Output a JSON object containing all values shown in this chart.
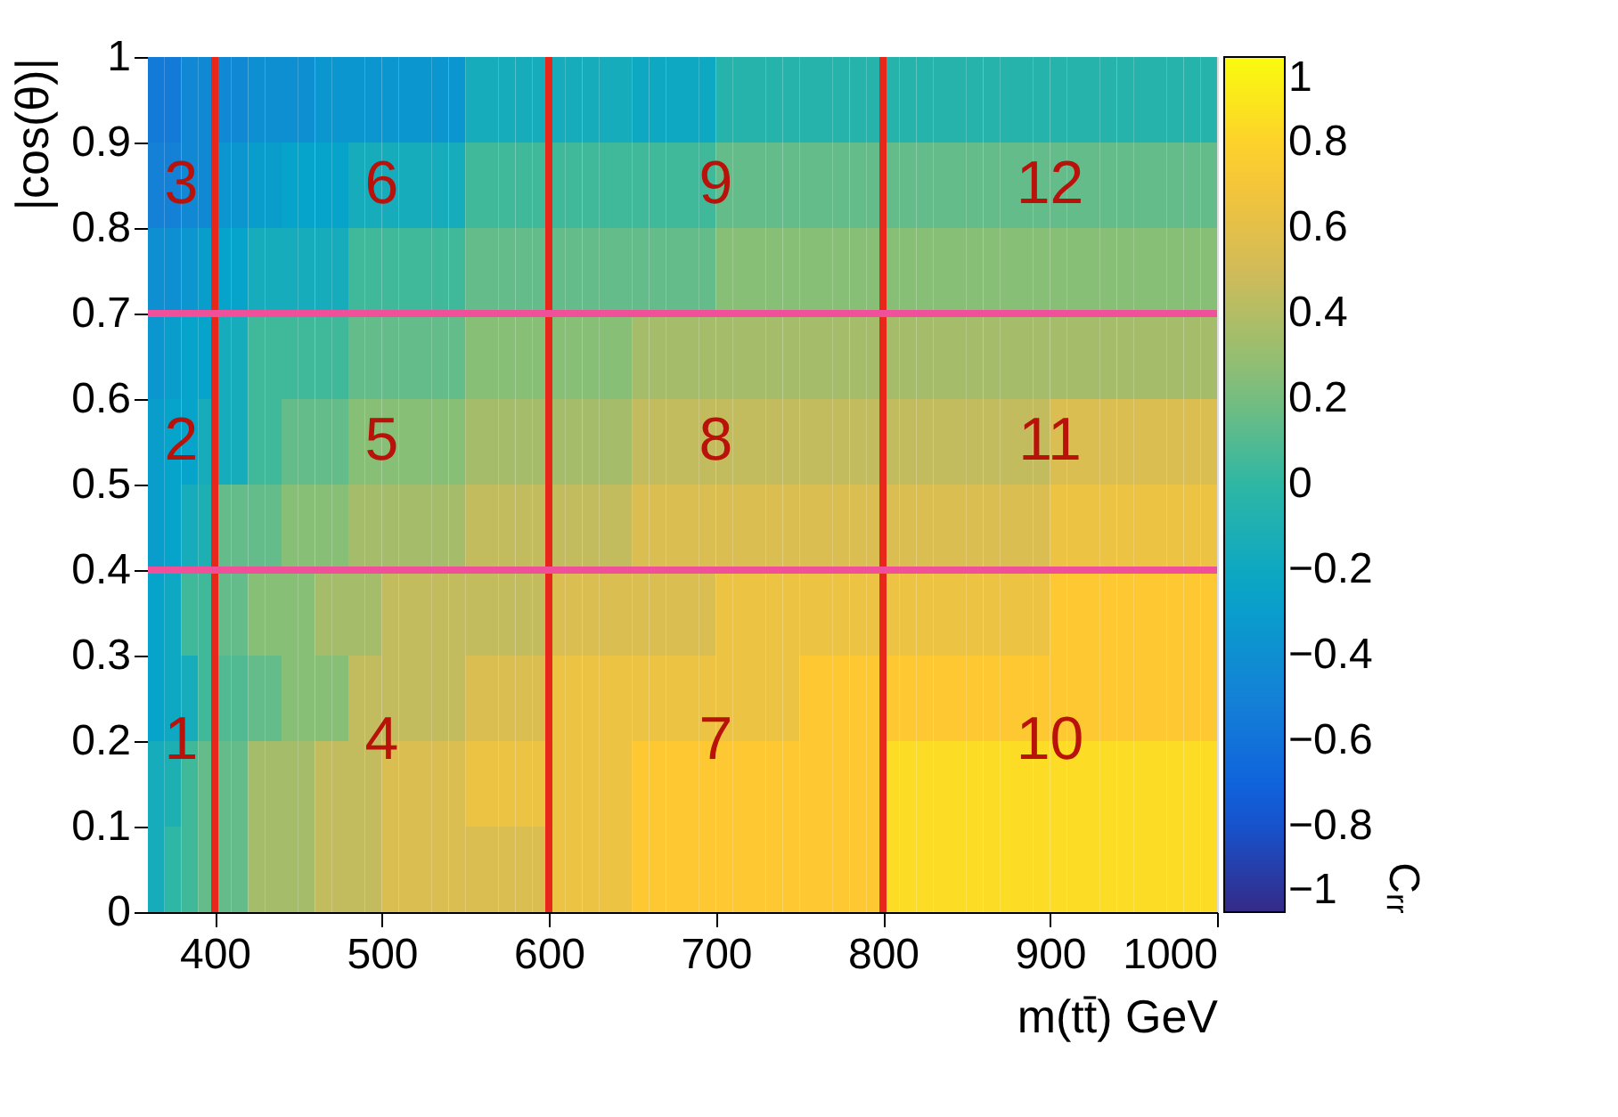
{
  "chart_data": {
    "type": "heatmap",
    "xlabel": "m(tt̄) GeV",
    "ylabel": "|cos(θ)|",
    "clabel": "Cᵣᵣ",
    "x": [
      365,
      375,
      385,
      395,
      405,
      415,
      425,
      435,
      445,
      455,
      465,
      475,
      485,
      495,
      505,
      515,
      525,
      535,
      545,
      555,
      565,
      575,
      585,
      595,
      605,
      615,
      625,
      635,
      645,
      655,
      665,
      675,
      685,
      695,
      705,
      715,
      725,
      735,
      745,
      755,
      765,
      775,
      785,
      795,
      805,
      815,
      825,
      835,
      845,
      855,
      865,
      875,
      885,
      895,
      905,
      915,
      925,
      935,
      945,
      955,
      965,
      975,
      985,
      995
    ],
    "y": [
      0.95,
      0.85,
      0.75,
      0.65,
      0.55,
      0.45,
      0.35,
      0.25,
      0.15,
      0.05
    ],
    "cells": [
      [
        -0.55,
        -0.55,
        -0.45,
        -0.45,
        -0.45,
        -0.45,
        -0.4,
        -0.4,
        -0.4,
        -0.4,
        -0.35,
        -0.35,
        -0.35,
        -0.35,
        -0.35,
        -0.35,
        -0.35,
        -0.35,
        -0.35,
        -0.15,
        -0.15,
        -0.15,
        -0.15,
        -0.15,
        -0.15,
        -0.15,
        -0.15,
        -0.15,
        -0.15,
        -0.2,
        -0.2,
        -0.2,
        -0.2,
        -0.2,
        -0.05,
        -0.05,
        -0.05,
        -0.05,
        -0.05,
        -0.05,
        -0.05,
        -0.05,
        -0.05,
        -0.05,
        -0.05,
        -0.05,
        -0.05,
        -0.05,
        -0.05,
        -0.05,
        -0.05,
        -0.05,
        -0.05,
        -0.05,
        -0.05,
        -0.05,
        -0.05,
        -0.05,
        -0.05,
        -0.05,
        -0.05,
        -0.05,
        -0.05,
        -0.05
      ],
      [
        -0.5,
        -0.5,
        -0.45,
        -0.45,
        -0.35,
        -0.35,
        -0.3,
        -0.3,
        -0.25,
        -0.25,
        -0.25,
        -0.25,
        -0.15,
        -0.15,
        -0.15,
        -0.15,
        -0.15,
        -0.15,
        -0.15,
        0.05,
        0.05,
        0.05,
        0.05,
        0.05,
        0.05,
        0.05,
        0.05,
        0.05,
        0.05,
        0.05,
        0.05,
        0.05,
        0.05,
        0.05,
        0.15,
        0.15,
        0.15,
        0.15,
        0.15,
        0.15,
        0.15,
        0.15,
        0.15,
        0.15,
        0.15,
        0.15,
        0.15,
        0.15,
        0.15,
        0.15,
        0.15,
        0.15,
        0.15,
        0.15,
        0.15,
        0.15,
        0.15,
        0.15,
        0.15,
        0.15,
        0.15,
        0.15,
        0.15,
        0.15
      ],
      [
        -0.4,
        -0.4,
        -0.35,
        -0.3,
        -0.25,
        -0.25,
        -0.15,
        -0.15,
        -0.15,
        -0.15,
        -0.15,
        -0.15,
        0.05,
        0.05,
        0.05,
        0.05,
        0.05,
        0.05,
        0.05,
        0.15,
        0.15,
        0.15,
        0.15,
        0.15,
        0.15,
        0.15,
        0.15,
        0.15,
        0.15,
        0.15,
        0.15,
        0.15,
        0.15,
        0.15,
        0.25,
        0.25,
        0.25,
        0.25,
        0.25,
        0.25,
        0.25,
        0.25,
        0.25,
        0.25,
        0.25,
        0.25,
        0.25,
        0.25,
        0.25,
        0.25,
        0.25,
        0.25,
        0.25,
        0.25,
        0.25,
        0.25,
        0.25,
        0.25,
        0.25,
        0.25,
        0.25,
        0.25,
        0.25,
        0.25
      ],
      [
        -0.35,
        -0.3,
        -0.25,
        -0.25,
        -0.15,
        -0.15,
        0.05,
        0.05,
        0.05,
        0.05,
        0.05,
        0.05,
        0.15,
        0.15,
        0.15,
        0.15,
        0.15,
        0.15,
        0.15,
        0.25,
        0.25,
        0.25,
        0.25,
        0.25,
        0.25,
        0.25,
        0.25,
        0.25,
        0.25,
        0.35,
        0.35,
        0.35,
        0.35,
        0.35,
        0.35,
        0.35,
        0.35,
        0.35,
        0.35,
        0.35,
        0.35,
        0.35,
        0.35,
        0.35,
        0.35,
        0.35,
        0.35,
        0.35,
        0.35,
        0.35,
        0.35,
        0.35,
        0.35,
        0.35,
        0.35,
        0.35,
        0.35,
        0.35,
        0.35,
        0.35,
        0.35,
        0.35,
        0.35,
        0.35
      ],
      [
        -0.3,
        -0.25,
        -0.25,
        -0.15,
        -0.15,
        -0.15,
        0.05,
        0.05,
        0.15,
        0.15,
        0.15,
        0.15,
        0.25,
        0.25,
        0.25,
        0.25,
        0.25,
        0.25,
        0.25,
        0.35,
        0.35,
        0.35,
        0.35,
        0.35,
        0.35,
        0.35,
        0.35,
        0.35,
        0.35,
        0.45,
        0.45,
        0.45,
        0.45,
        0.45,
        0.45,
        0.45,
        0.45,
        0.45,
        0.45,
        0.45,
        0.45,
        0.45,
        0.45,
        0.45,
        0.45,
        0.45,
        0.45,
        0.45,
        0.45,
        0.45,
        0.45,
        0.45,
        0.45,
        0.45,
        0.55,
        0.55,
        0.55,
        0.55,
        0.55,
        0.55,
        0.55,
        0.55,
        0.55,
        0.55
      ],
      [
        -0.3,
        -0.25,
        -0.15,
        -0.1,
        0.15,
        0.15,
        0.15,
        0.15,
        0.25,
        0.25,
        0.25,
        0.25,
        0.35,
        0.35,
        0.35,
        0.35,
        0.35,
        0.35,
        0.35,
        0.45,
        0.45,
        0.45,
        0.45,
        0.45,
        0.45,
        0.45,
        0.45,
        0.45,
        0.45,
        0.55,
        0.55,
        0.55,
        0.55,
        0.55,
        0.55,
        0.55,
        0.55,
        0.55,
        0.55,
        0.55,
        0.55,
        0.55,
        0.55,
        0.55,
        0.55,
        0.55,
        0.55,
        0.55,
        0.55,
        0.55,
        0.55,
        0.55,
        0.55,
        0.55,
        0.65,
        0.65,
        0.65,
        0.65,
        0.65,
        0.65,
        0.65,
        0.65,
        0.65,
        0.65
      ],
      [
        -0.25,
        -0.2,
        0.05,
        0.05,
        0.15,
        0.15,
        0.25,
        0.25,
        0.25,
        0.25,
        0.35,
        0.35,
        0.35,
        0.35,
        0.45,
        0.45,
        0.45,
        0.45,
        0.45,
        0.45,
        0.45,
        0.45,
        0.45,
        0.45,
        0.55,
        0.55,
        0.55,
        0.55,
        0.55,
        0.55,
        0.55,
        0.55,
        0.55,
        0.55,
        0.65,
        0.65,
        0.65,
        0.65,
        0.65,
        0.65,
        0.65,
        0.65,
        0.65,
        0.65,
        0.65,
        0.65,
        0.65,
        0.65,
        0.65,
        0.65,
        0.65,
        0.65,
        0.65,
        0.65,
        0.75,
        0.75,
        0.75,
        0.75,
        0.75,
        0.75,
        0.75,
        0.75,
        0.75,
        0.75
      ],
      [
        -0.25,
        -0.2,
        -0.15,
        0.05,
        0.1,
        0.1,
        0.15,
        0.15,
        0.25,
        0.25,
        0.25,
        0.25,
        0.45,
        0.45,
        0.45,
        0.45,
        0.45,
        0.45,
        0.45,
        0.55,
        0.55,
        0.55,
        0.55,
        0.55,
        0.65,
        0.65,
        0.65,
        0.65,
        0.65,
        0.65,
        0.65,
        0.65,
        0.65,
        0.65,
        0.65,
        0.65,
        0.65,
        0.65,
        0.65,
        0.75,
        0.75,
        0.75,
        0.75,
        0.75,
        0.75,
        0.75,
        0.75,
        0.75,
        0.75,
        0.75,
        0.75,
        0.75,
        0.75,
        0.75,
        0.75,
        0.75,
        0.75,
        0.75,
        0.75,
        0.75,
        0.75,
        0.75,
        0.75,
        0.75
      ],
      [
        -0.15,
        -0.1,
        0.05,
        0.15,
        0.15,
        0.15,
        0.35,
        0.35,
        0.35,
        0.35,
        0.45,
        0.45,
        0.45,
        0.45,
        0.55,
        0.55,
        0.55,
        0.55,
        0.55,
        0.65,
        0.65,
        0.65,
        0.65,
        0.65,
        0.65,
        0.65,
        0.65,
        0.65,
        0.65,
        0.75,
        0.75,
        0.75,
        0.75,
        0.75,
        0.75,
        0.75,
        0.75,
        0.75,
        0.75,
        0.75,
        0.75,
        0.75,
        0.75,
        0.75,
        0.85,
        0.85,
        0.85,
        0.85,
        0.85,
        0.85,
        0.85,
        0.85,
        0.85,
        0.85,
        0.85,
        0.85,
        0.85,
        0.85,
        0.85,
        0.85,
        0.85,
        0.85,
        0.85,
        0.85
      ],
      [
        -0.15,
        0.0,
        0.05,
        0.15,
        0.15,
        0.15,
        0.35,
        0.35,
        0.35,
        0.35,
        0.45,
        0.45,
        0.45,
        0.45,
        0.55,
        0.55,
        0.55,
        0.55,
        0.55,
        0.55,
        0.55,
        0.55,
        0.55,
        0.55,
        0.65,
        0.65,
        0.65,
        0.65,
        0.65,
        0.75,
        0.75,
        0.75,
        0.75,
        0.75,
        0.75,
        0.75,
        0.75,
        0.75,
        0.75,
        0.75,
        0.75,
        0.75,
        0.75,
        0.75,
        0.85,
        0.85,
        0.85,
        0.85,
        0.85,
        0.85,
        0.85,
        0.85,
        0.85,
        0.85,
        0.85,
        0.85,
        0.85,
        0.85,
        0.85,
        0.85,
        0.85,
        0.85,
        0.85,
        0.85
      ]
    ],
    "xlim": [
      360,
      1000
    ],
    "xticks": [
      400,
      500,
      600,
      700,
      800,
      900,
      1000
    ],
    "ylim": [
      0,
      1
    ],
    "yticks": [
      0,
      0.1,
      0.2,
      0.3,
      0.4,
      0.5,
      0.6,
      0.7,
      0.8,
      0.9,
      1
    ],
    "clim": [
      -1,
      1
    ],
    "cticks": [
      {
        "value": -1,
        "label": "−1"
      },
      {
        "value": -0.8,
        "label": "−0.8"
      },
      {
        "value": -0.6,
        "label": "−0.6"
      },
      {
        "value": -0.4,
        "label": "−0.4"
      },
      {
        "value": -0.2,
        "label": "−0.2"
      },
      0,
      0.2,
      0.4,
      0.6,
      0.8,
      1
    ],
    "ref_lines": [
      {
        "axis": "x",
        "value": 400,
        "color": "#e8261a"
      },
      {
        "axis": "x",
        "value": 600,
        "color": "#e8261a"
      },
      {
        "axis": "x",
        "value": 800,
        "color": "#e8261a"
      },
      {
        "axis": "y",
        "value": 0.4,
        "color": "#f0509a"
      },
      {
        "axis": "y",
        "value": 0.7,
        "color": "#f0509a"
      }
    ],
    "annotations": [
      "1",
      "2",
      "3",
      "4",
      "5",
      "6",
      "7",
      "8",
      "9",
      "10",
      "11",
      "12"
    ],
    "grid": false
  }
}
